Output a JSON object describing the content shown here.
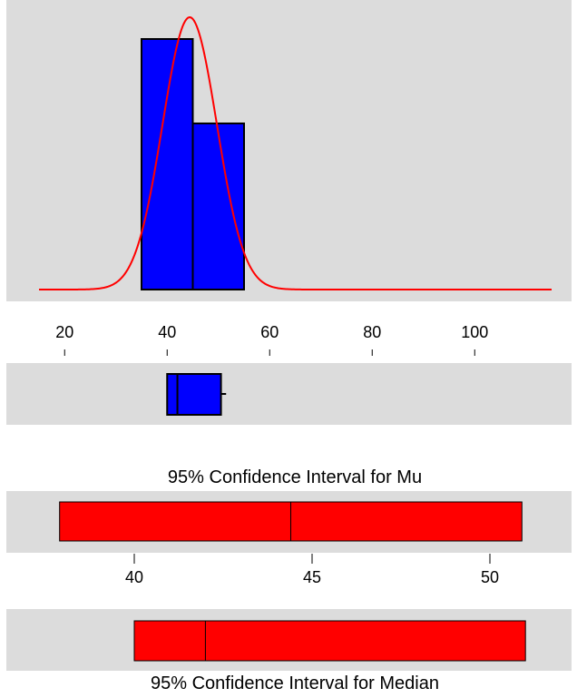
{
  "chart_data": [
    {
      "type": "histogram",
      "bins": [
        {
          "from": 35,
          "to": 45,
          "height": 0.92
        },
        {
          "from": 45,
          "to": 55,
          "height": 0.61
        }
      ],
      "normal_curve": {
        "mean": 44.4,
        "sd": 5.3,
        "color": "#ff0000"
      },
      "xlim": [
        15,
        115
      ],
      "xticks": [
        20,
        40,
        60,
        80,
        100
      ],
      "bar_color": "#0000ff",
      "background": "#dcdcdc"
    },
    {
      "type": "boxplot",
      "q1": 40,
      "median": 42,
      "q3": 50.5,
      "whisker_high": 51.5,
      "xlim": [
        15,
        115
      ],
      "color": "#0000ff"
    },
    {
      "type": "interval",
      "title": "95% Confidence Interval for Mu",
      "low": 37.9,
      "mid": 44.4,
      "high": 50.9,
      "color": "#ff0000"
    },
    {
      "type": "axis",
      "xlim": [
        37,
        52
      ],
      "xticks": [
        40,
        45,
        50
      ]
    },
    {
      "type": "interval",
      "title": "95% Confidence Interval for Median",
      "low": 40,
      "mid": 42,
      "high": 51,
      "color": "#ff0000"
    }
  ]
}
